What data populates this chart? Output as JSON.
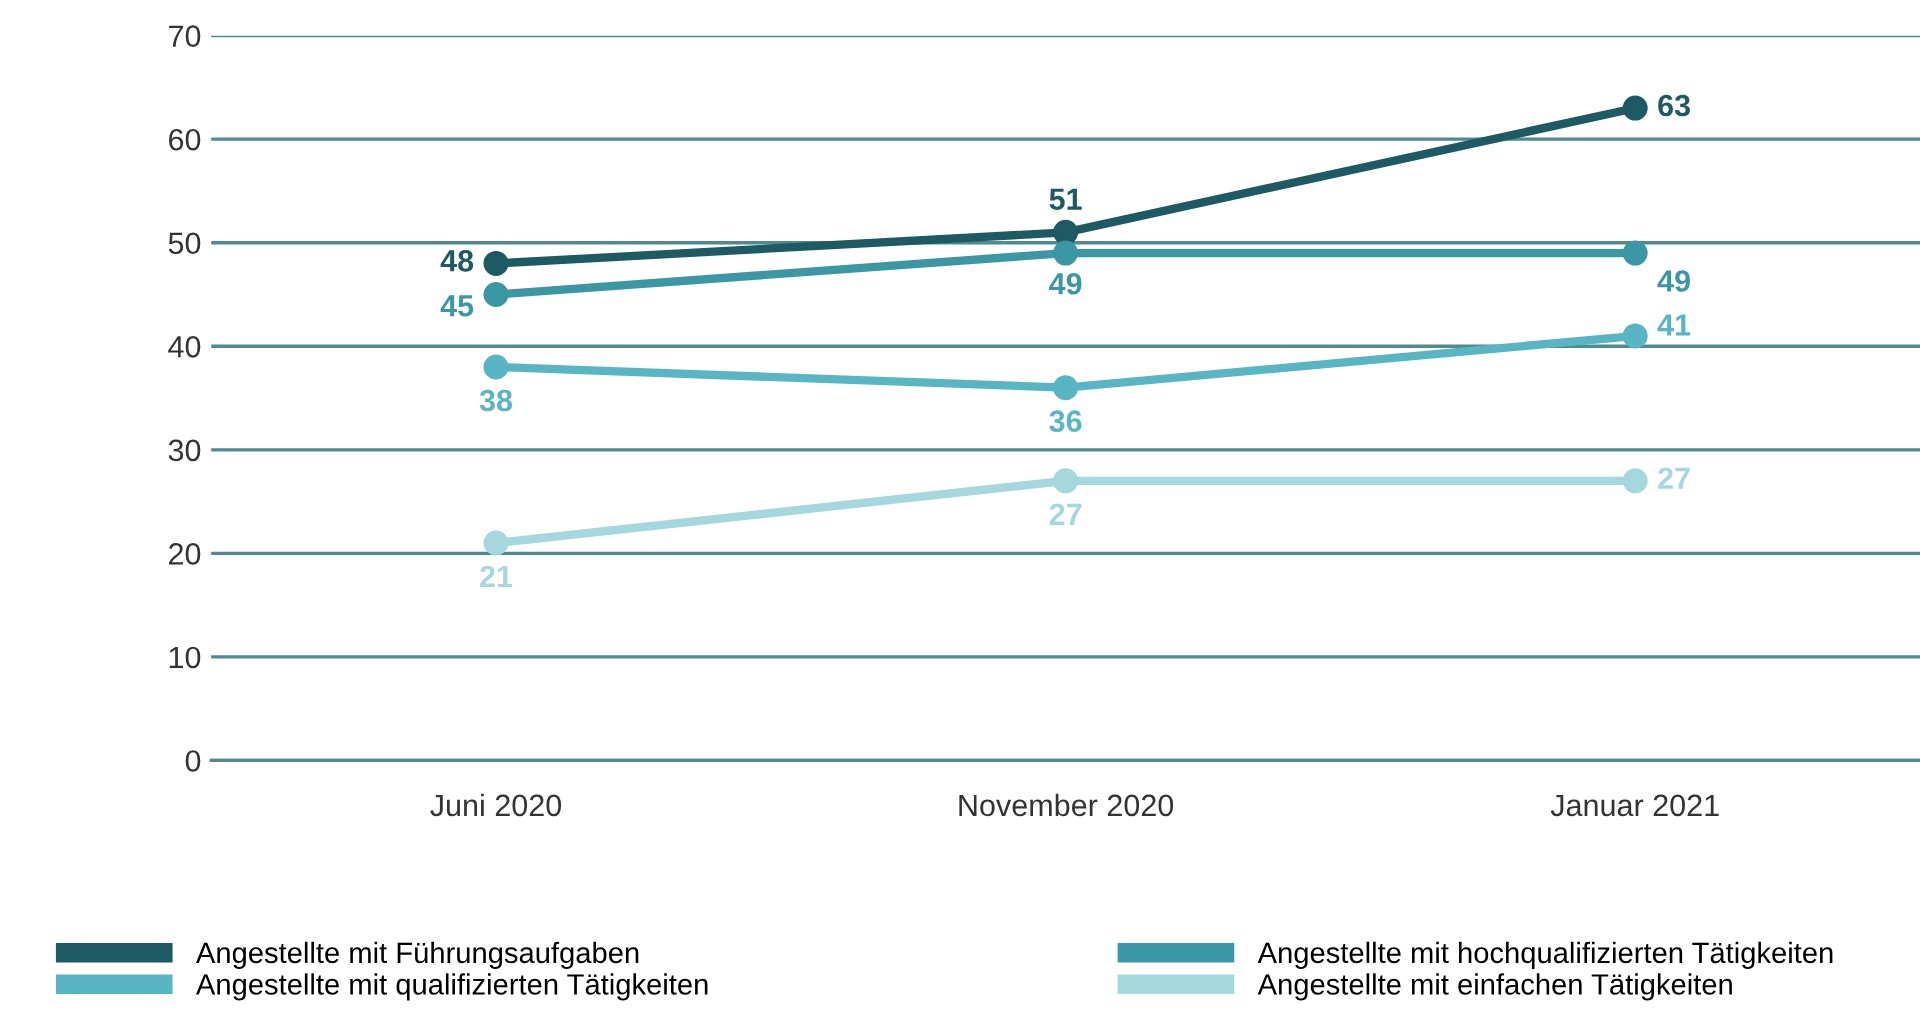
{
  "chart_data": {
    "type": "line",
    "categories": [
      "Juni 2020",
      "November 2020",
      "Januar 2021"
    ],
    "series": [
      {
        "name": "Angestellte mit Führungsaufgaben",
        "color": "#1d5a63",
        "values": [
          48,
          51,
          63
        ]
      },
      {
        "name": "Angestellte mit hochqualifizierten Tätigkeiten",
        "color": "#3a97a3",
        "values": [
          45,
          49,
          49
        ]
      },
      {
        "name": "Angestellte mit qualifizierten Tätigkeiten",
        "color": "#58b6c4",
        "values": [
          38,
          36,
          41
        ]
      },
      {
        "name": "Angestellte mit einfachen Tätigkeiten",
        "color": "#a5d7de",
        "values": [
          21,
          27,
          27
        ]
      }
    ],
    "ylim": [
      0,
      70
    ],
    "yticks": [
      0,
      10,
      20,
      30,
      40,
      50,
      60,
      70
    ],
    "grid": "y",
    "legend": "bottom",
    "marker": "circle",
    "line_style": "solid",
    "data_labels": true
  }
}
